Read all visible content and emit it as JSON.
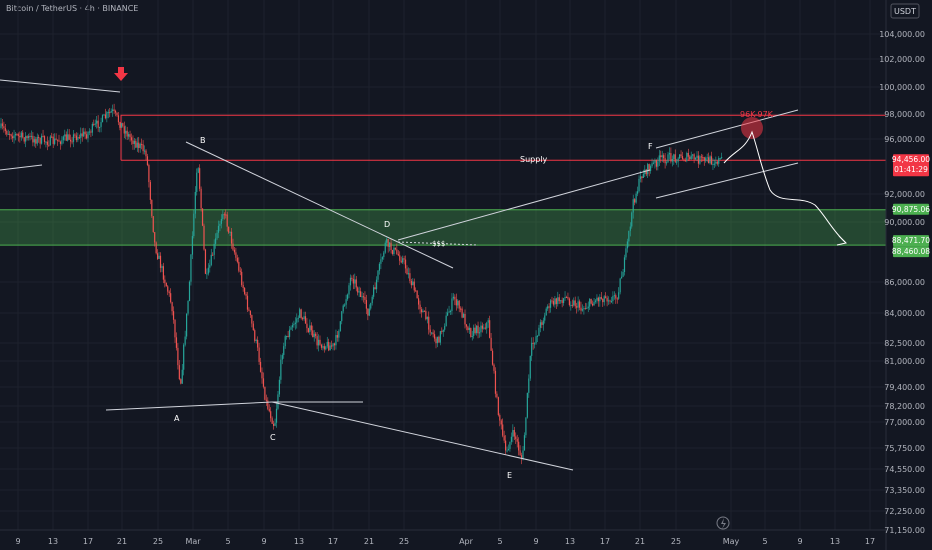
{
  "header": {
    "symbol_line": "Bitcoin / TetherUS · 4h · BINANCE"
  },
  "currency": "USDT",
  "colors": {
    "background": "#131722",
    "up": "#26a69a",
    "down": "#ef5350",
    "grid": "#1e222d",
    "supply": "#f23645",
    "demand": "#4caf50",
    "trend": "#d1d4dc",
    "accent": "#f23645"
  },
  "chart_data": {
    "type": "candlestick",
    "timeframe": "4h",
    "y_ticks": [
      "104,000.00",
      "102,000.00",
      "100,000.00",
      "98,000.00",
      "96,000.00",
      "92,000.00",
      "90,000.00",
      "86,000.00",
      "84,000.00",
      "82,500.00",
      "81,000.00",
      "79,400.00",
      "78,200.00",
      "77,000.00",
      "75,750.00",
      "74,550.00",
      "73,350.00",
      "72,250.00",
      "71,150.00"
    ],
    "x_ticks": [
      "9",
      "13",
      "17",
      "21",
      "25",
      "Mar",
      "5",
      "9",
      "13",
      "17",
      "21",
      "25",
      "Apr",
      "5",
      "9",
      "13",
      "17",
      "21",
      "25",
      "May",
      "5",
      "9",
      "13",
      "17"
    ],
    "price_badges": [
      {
        "value": "94,456.00",
        "sub": "01:41:29",
        "color": "#f23645"
      },
      {
        "value": "90,875.06",
        "sub": "",
        "color": "#4caf50"
      },
      {
        "value": "88,471.70",
        "sub": "",
        "color": "#4caf50"
      },
      {
        "value": "88,460.08",
        "sub": "",
        "color": "#4caf50"
      }
    ],
    "annotations": {
      "supply": "Supply",
      "target": "96K-97K",
      "liquidity": "$$$",
      "points": [
        "A",
        "B",
        "C",
        "D",
        "E",
        "F"
      ]
    },
    "zones": {
      "supply": [
        94456,
        97900
      ],
      "demand": [
        88460,
        90875
      ]
    },
    "price_path": [
      {
        "date": "2025-02-05",
        "price": 97500
      },
      {
        "date": "2025-02-09",
        "price": 96200
      },
      {
        "date": "2025-02-13",
        "price": 95800
      },
      {
        "date": "2025-02-17",
        "price": 96400
      },
      {
        "date": "2025-02-20",
        "price": 98200
      },
      {
        "date": "2025-02-22",
        "price": 96200
      },
      {
        "date": "2025-02-24",
        "price": 95000
      },
      {
        "date": "2025-02-25",
        "price": 88500
      },
      {
        "date": "2025-02-27",
        "price": 84500
      },
      {
        "date": "2025-02-28",
        "price": 79500
      },
      {
        "date": "2025-03-01",
        "price": 85500
      },
      {
        "date": "2025-03-02",
        "price": 94800
      },
      {
        "date": "2025-03-03",
        "price": 86000
      },
      {
        "date": "2025-03-05",
        "price": 91000
      },
      {
        "date": "2025-03-07",
        "price": 86500
      },
      {
        "date": "2025-03-09",
        "price": 82000
      },
      {
        "date": "2025-03-10",
        "price": 78500
      },
      {
        "date": "2025-03-11",
        "price": 76800
      },
      {
        "date": "2025-03-12",
        "price": 82500
      },
      {
        "date": "2025-03-14",
        "price": 84000
      },
      {
        "date": "2025-03-16",
        "price": 82500
      },
      {
        "date": "2025-03-18",
        "price": 82200
      },
      {
        "date": "2025-03-20",
        "price": 86500
      },
      {
        "date": "2025-03-22",
        "price": 84000
      },
      {
        "date": "2025-03-24",
        "price": 88600
      },
      {
        "date": "2025-03-26",
        "price": 87500
      },
      {
        "date": "2025-03-28",
        "price": 84500
      },
      {
        "date": "2025-03-30",
        "price": 82500
      },
      {
        "date": "2025-04-01",
        "price": 85000
      },
      {
        "date": "2025-04-03",
        "price": 83000
      },
      {
        "date": "2025-04-05",
        "price": 83500
      },
      {
        "date": "2025-04-06",
        "price": 78500
      },
      {
        "date": "2025-04-07",
        "price": 75500
      },
      {
        "date": "2025-04-08",
        "price": 76500
      },
      {
        "date": "2025-04-09",
        "price": 75000
      },
      {
        "date": "2025-04-10",
        "price": 82000
      },
      {
        "date": "2025-04-12",
        "price": 84500
      },
      {
        "date": "2025-04-14",
        "price": 85000
      },
      {
        "date": "2025-04-16",
        "price": 84300
      },
      {
        "date": "2025-04-18",
        "price": 85000
      },
      {
        "date": "2025-04-20",
        "price": 85000
      },
      {
        "date": "2025-04-21",
        "price": 87500
      },
      {
        "date": "2025-04-22",
        "price": 91500
      },
      {
        "date": "2025-04-23",
        "price": 93500
      },
      {
        "date": "2025-04-25",
        "price": 94500
      },
      {
        "date": "2025-04-27",
        "price": 94700
      },
      {
        "date": "2025-04-29",
        "price": 94600
      },
      {
        "date": "2025-04-30",
        "price": 94456
      }
    ]
  }
}
